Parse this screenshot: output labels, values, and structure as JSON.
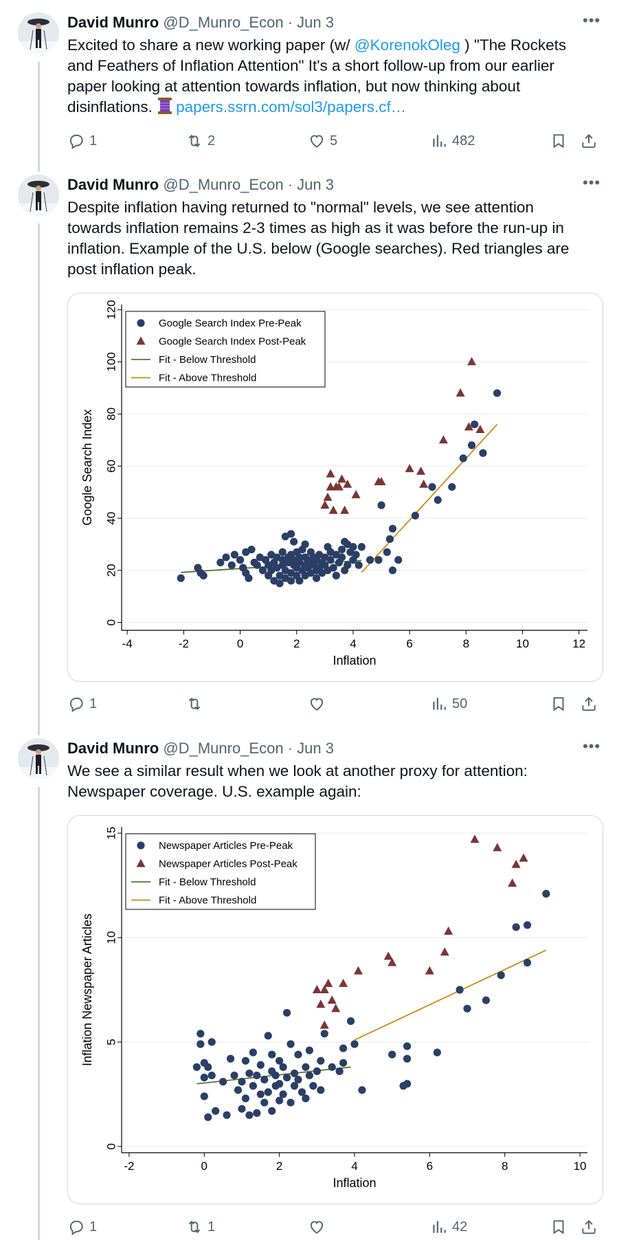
{
  "colors": {
    "accent": "#1d9bf0",
    "text": "#0f1419",
    "muted": "#536471",
    "border": "#cfd9de",
    "pre": "#2b3f66",
    "post": "#7b3535",
    "fit_below": "#557a2e",
    "fit_above": "#cf8b12"
  },
  "tweets": [
    {
      "name": "David Munro",
      "handle": "@D_Munro_Econ",
      "sep": "·",
      "date": "Jun 3",
      "text_1": "Excited to share a new working paper (w/ ",
      "mention": "@KorenokOleg",
      "text_2": " ) \"The Rockets and Feathers of Inflation Attention\" It's a short follow-up from our earlier paper looking at attention towards inflation, but now thinking about disinflations. ",
      "emoji_icon": "thread-spool-icon",
      "link": "papers.ssrn.com/sol3/papers.cf…",
      "replies": "1",
      "reposts": "2",
      "likes": "5",
      "views": "482"
    },
    {
      "name": "David Munro",
      "handle": "@D_Munro_Econ",
      "sep": "·",
      "date": "Jun 3",
      "text": "Despite inflation having returned to \"normal\" levels, we see attention towards inflation remains 2-3 times as high as it was before the run-up in inflation. Example of the U.S. below (Google searches). Red triangles are post inflation peak.",
      "replies": "1",
      "reposts": "",
      "likes": "",
      "views": "50"
    },
    {
      "name": "David Munro",
      "handle": "@D_Munro_Econ",
      "sep": "·",
      "date": "Jun 3",
      "text": "We see a similar result when we look at another proxy for attention: Newspaper coverage. U.S. example again:",
      "replies": "1",
      "reposts": "1",
      "likes": "",
      "views": "42"
    }
  ],
  "chart_data": [
    {
      "type": "scatter",
      "xlabel": "Inflation",
      "ylabel": "Google Search Index",
      "xlim": [
        -4.2,
        12.3
      ],
      "ylim": [
        -3,
        122
      ],
      "xticks": [
        -4,
        -2,
        0,
        2,
        4,
        6,
        8,
        10,
        12
      ],
      "yticks": [
        0,
        20,
        40,
        60,
        80,
        100,
        120
      ],
      "grid": true,
      "legend_position": "top-left",
      "legend": [
        "Google Search Index Pre-Peak",
        "Google Search Index Post-Peak",
        "Fit - Below Threshold",
        "Fit - Above Threshold"
      ],
      "series": [
        {
          "name": "Google Search Index Pre-Peak",
          "marker": "circle",
          "color": "#2b3f66",
          "points": [
            [
              -2.1,
              17
            ],
            [
              -1.5,
              21
            ],
            [
              -1.4,
              19
            ],
            [
              -1.3,
              18
            ],
            [
              -0.7,
              23
            ],
            [
              -0.5,
              25
            ],
            [
              -0.3,
              22
            ],
            [
              -0.2,
              26
            ],
            [
              0,
              24
            ],
            [
              0.1,
              21
            ],
            [
              0.2,
              19
            ],
            [
              0.2,
              27
            ],
            [
              0.3,
              17
            ],
            [
              0.4,
              28
            ],
            [
              0.5,
              23
            ],
            [
              0.6,
              22
            ],
            [
              0.7,
              25
            ],
            [
              0.8,
              20
            ],
            [
              0.9,
              24
            ],
            [
              1,
              22
            ],
            [
              1,
              18
            ],
            [
              1.1,
              26
            ],
            [
              1.1,
              20
            ],
            [
              1.2,
              23
            ],
            [
              1.2,
              16
            ],
            [
              1.3,
              25
            ],
            [
              1.3,
              21
            ],
            [
              1.4,
              18
            ],
            [
              1.4,
              15
            ],
            [
              1.5,
              24
            ],
            [
              1.5,
              22
            ],
            [
              1.5,
              27
            ],
            [
              1.6,
              20
            ],
            [
              1.6,
              17
            ],
            [
              1.7,
              25
            ],
            [
              1.7,
              23
            ],
            [
              1.8,
              19
            ],
            [
              1.8,
              26
            ],
            [
              1.8,
              16
            ],
            [
              1.9,
              22
            ],
            [
              1.9,
              24
            ],
            [
              1.9,
              31
            ],
            [
              2,
              21
            ],
            [
              2,
              18
            ],
            [
              2,
              27
            ],
            [
              2.1,
              25
            ],
            [
              2.1,
              23
            ],
            [
              2.1,
              16
            ],
            [
              2.2,
              20
            ],
            [
              2.2,
              28
            ],
            [
              2.3,
              22
            ],
            [
              2.3,
              18
            ],
            [
              2.3,
              25
            ],
            [
              2.4,
              24
            ],
            [
              2.4,
              21
            ],
            [
              2.5,
              19
            ],
            [
              2.5,
              27
            ],
            [
              2.5,
              23
            ],
            [
              2.6,
              22
            ],
            [
              2.6,
              25
            ],
            [
              2.7,
              17
            ],
            [
              2.7,
              20
            ],
            [
              2.7,
              24
            ],
            [
              2.8,
              21
            ],
            [
              2.8,
              26
            ],
            [
              2.9,
              23
            ],
            [
              2.9,
              19
            ],
            [
              3,
              25
            ],
            [
              3,
              22
            ],
            [
              3.1,
              29
            ],
            [
              3.1,
              20
            ],
            [
              3.2,
              27
            ],
            [
              3.2,
              24
            ],
            [
              3.3,
              21
            ],
            [
              3.4,
              26
            ],
            [
              3.4,
              18
            ],
            [
              3.5,
              23
            ],
            [
              3.6,
              28
            ],
            [
              3.6,
              25
            ],
            [
              3.7,
              20
            ],
            [
              3.8,
              30
            ],
            [
              3.8,
              22
            ],
            [
              3.9,
              27
            ],
            [
              4,
              24
            ],
            [
              4,
              29
            ],
            [
              4.1,
              26
            ],
            [
              4.2,
              22
            ],
            [
              4.3,
              29
            ],
            [
              1.6,
              33
            ],
            [
              1.8,
              34
            ],
            [
              2.3,
              30
            ],
            [
              3.7,
              31
            ],
            [
              4.6,
              24
            ],
            [
              4.9,
              24
            ],
            [
              5,
              45
            ],
            [
              5.2,
              27
            ],
            [
              5.3,
              32
            ],
            [
              5.4,
              20
            ],
            [
              5.4,
              36
            ],
            [
              5.6,
              24
            ],
            [
              6.2,
              41
            ],
            [
              6.8,
              52
            ],
            [
              7,
              47
            ],
            [
              7.5,
              52
            ],
            [
              7.9,
              63
            ],
            [
              8.2,
              68
            ],
            [
              8.3,
              76
            ],
            [
              8.6,
              65
            ],
            [
              9.1,
              88
            ]
          ]
        },
        {
          "name": "Google Search Index Post-Peak",
          "marker": "triangle",
          "color": "#7b3535",
          "points": [
            [
              3,
              45
            ],
            [
              3.1,
              48
            ],
            [
              3.2,
              52
            ],
            [
              3.2,
              57
            ],
            [
              3.3,
              43
            ],
            [
              3.4,
              52
            ],
            [
              3.5,
              52
            ],
            [
              3.6,
              55
            ],
            [
              3.7,
              43
            ],
            [
              3.8,
              53
            ],
            [
              4.1,
              49
            ],
            [
              4.9,
              54
            ],
            [
              5,
              54
            ],
            [
              6,
              59
            ],
            [
              6.4,
              58
            ],
            [
              6.5,
              53
            ],
            [
              7.2,
              70
            ],
            [
              7.8,
              88
            ],
            [
              8.1,
              75
            ],
            [
              8.2,
              100
            ],
            [
              8.5,
              74
            ]
          ]
        }
      ],
      "fits": [
        {
          "name": "Fit - Below Threshold",
          "color": "#557a2e",
          "x": [
            -2.1,
            4.3
          ],
          "y": [
            19.2,
            23.8
          ]
        },
        {
          "name": "Fit - Above Threshold",
          "color": "#cf8b12",
          "x": [
            4.3,
            9.1
          ],
          "y": [
            19.2,
            76
          ]
        }
      ]
    },
    {
      "type": "scatter",
      "xlabel": "Inflation",
      "ylabel": "Inflation Newspaper Articles",
      "xlim": [
        -2.2,
        10.2
      ],
      "ylim": [
        -0.3,
        15.3
      ],
      "xticks": [
        -2,
        0,
        2,
        4,
        6,
        8,
        10
      ],
      "yticks": [
        0,
        5,
        10,
        15
      ],
      "grid": true,
      "legend_position": "top-left",
      "legend": [
        "Newspaper Articles Pre-Peak",
        "Newspaper Articles Post-Peak",
        "Fit - Below Threshold",
        "Fit - Above Threshold"
      ],
      "series": [
        {
          "name": "Newspaper Articles Pre-Peak",
          "marker": "circle",
          "color": "#2b3f66",
          "points": [
            [
              -0.2,
              3.8
            ],
            [
              -0.1,
              5.4
            ],
            [
              -0.1,
              4.9
            ],
            [
              0,
              4
            ],
            [
              0,
              3.3
            ],
            [
              0,
              2.4
            ],
            [
              0.1,
              3.8
            ],
            [
              0.1,
              1.4
            ],
            [
              0.2,
              3.4
            ],
            [
              0.2,
              5
            ],
            [
              0.3,
              1.7
            ],
            [
              0.5,
              3.1
            ],
            [
              0.6,
              1.5
            ],
            [
              0.7,
              4.2
            ],
            [
              0.8,
              3.4
            ],
            [
              0.9,
              2.7
            ],
            [
              1,
              1.8
            ],
            [
              1,
              3.1
            ],
            [
              1.1,
              4.1
            ],
            [
              1.1,
              2.3
            ],
            [
              1.2,
              3.5
            ],
            [
              1.2,
              1.5
            ],
            [
              1.3,
              2.9
            ],
            [
              1.3,
              4.5
            ],
            [
              1.4,
              1.6
            ],
            [
              1.4,
              3.4
            ],
            [
              1.5,
              2.5
            ],
            [
              1.5,
              3.9
            ],
            [
              1.6,
              2.1
            ],
            [
              1.6,
              3.2
            ],
            [
              1.7,
              5.3
            ],
            [
              1.7,
              2.6
            ],
            [
              1.8,
              3.6
            ],
            [
              1.8,
              1.7
            ],
            [
              1.8,
              4.4
            ],
            [
              1.9,
              2.9
            ],
            [
              1.9,
              3.4
            ],
            [
              2,
              2.2
            ],
            [
              2,
              4.1
            ],
            [
              2,
              3
            ],
            [
              2.1,
              3.8
            ],
            [
              2.1,
              2.5
            ],
            [
              2.2,
              6.4
            ],
            [
              2.2,
              3.3
            ],
            [
              2.3,
              4.9
            ],
            [
              2.3,
              2.1
            ],
            [
              2.4,
              3.5
            ],
            [
              2.4,
              2.9
            ],
            [
              2.5,
              4.4
            ],
            [
              2.5,
              3.2
            ],
            [
              2.6,
              2.6
            ],
            [
              2.7,
              3.8
            ],
            [
              2.7,
              2.3
            ],
            [
              2.8,
              3.4
            ],
            [
              2.8,
              4.6
            ],
            [
              2.9,
              2.9
            ],
            [
              3,
              3.6
            ],
            [
              3.1,
              4.1
            ],
            [
              3.1,
              2.7
            ],
            [
              3.2,
              5.4
            ],
            [
              3.4,
              3.8
            ],
            [
              3.6,
              3.6
            ],
            [
              3.7,
              4.7
            ],
            [
              3.7,
              4
            ],
            [
              3.9,
              6
            ],
            [
              4,
              4.9
            ],
            [
              4.2,
              2.7
            ],
            [
              5,
              4.4
            ],
            [
              5.3,
              2.9
            ],
            [
              5.4,
              3
            ],
            [
              5.4,
              4.8
            ],
            [
              5.4,
              4.2
            ],
            [
              6.2,
              4.5
            ],
            [
              6.8,
              7.5
            ],
            [
              7,
              6.6
            ],
            [
              7.5,
              7
            ],
            [
              7.9,
              8.2
            ],
            [
              8.3,
              10.5
            ],
            [
              8.6,
              10.6
            ],
            [
              8.6,
              8.8
            ],
            [
              9.1,
              12.1
            ]
          ]
        },
        {
          "name": "Newspaper Articles Post-Peak",
          "marker": "triangle",
          "color": "#7b3535",
          "points": [
            [
              3,
              7.5
            ],
            [
              3.1,
              6.8
            ],
            [
              3.2,
              7.5
            ],
            [
              3.2,
              5.8
            ],
            [
              3.3,
              7.8
            ],
            [
              3.4,
              7
            ],
            [
              3.5,
              6.6
            ],
            [
              3.7,
              7.8
            ],
            [
              4.1,
              8.4
            ],
            [
              4.9,
              9.1
            ],
            [
              5,
              8.8
            ],
            [
              6,
              8.4
            ],
            [
              6.4,
              9.3
            ],
            [
              6.5,
              10.3
            ],
            [
              7.2,
              14.7
            ],
            [
              7.8,
              14.3
            ],
            [
              8.2,
              12.6
            ],
            [
              8.3,
              13.5
            ],
            [
              8.5,
              13.8
            ]
          ]
        }
      ],
      "fits": [
        {
          "name": "Fit - Below Threshold",
          "color": "#557a2e",
          "x": [
            -0.2,
            3.9
          ],
          "y": [
            3,
            3.8
          ]
        },
        {
          "name": "Fit - Above Threshold",
          "color": "#cf8b12",
          "x": [
            4,
            9.1
          ],
          "y": [
            5.1,
            9.4
          ]
        }
      ]
    }
  ]
}
